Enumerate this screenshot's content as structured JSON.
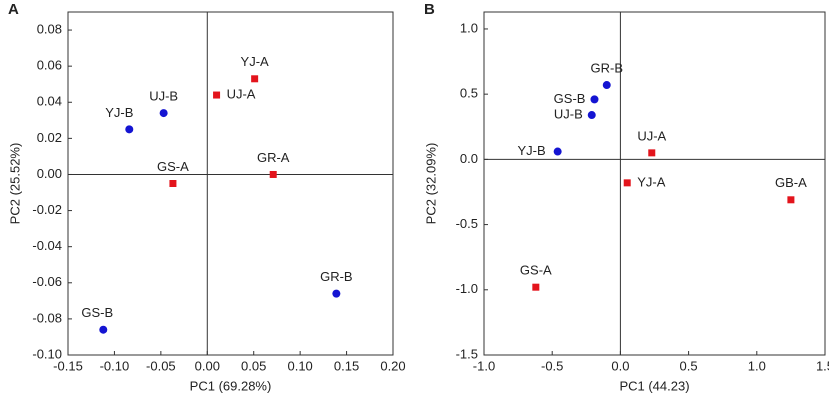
{
  "chart_data": [
    {
      "type": "scatter",
      "title": "A",
      "xlabel": "PC1 (69.28%)",
      "ylabel": "PC2 (25.52%)",
      "xlim": [
        -0.15,
        0.2
      ],
      "ylim": [
        -0.1,
        0.09
      ],
      "xticks": [
        -0.15,
        {
          "value": -0.1,
          "label": "-0.10"
        },
        -0.05,
        {
          "value": 0,
          "label": "0.00"
        },
        0.05,
        {
          "value": 0.1,
          "label": "0.10"
        },
        0.15,
        {
          "value": 0.2,
          "label": "0.20"
        }
      ],
      "yticks": [
        0.08,
        0.06,
        0.04,
        0.02,
        {
          "value": 0,
          "label": "0.00"
        },
        -0.02,
        -0.04,
        -0.06,
        -0.08,
        {
          "value": -0.1,
          "label": "-0.10"
        }
      ],
      "series": [
        {
          "color": "#e3141c",
          "marker": "square",
          "labels": [
            "YJ-A",
            "UJ-A",
            "GS-A",
            "GR-A"
          ],
          "x": [
            0.051,
            0.01,
            -0.037,
            0.071
          ],
          "y": [
            0.053,
            0.044,
            -0.005,
            0.0
          ]
        },
        {
          "color": "#1414d2",
          "marker": "circle",
          "labels": [
            "UJ-B",
            "YJ-B",
            "GR-B",
            "GS-B"
          ],
          "x": [
            -0.047,
            -0.084,
            0.139,
            -0.112
          ],
          "y": [
            0.034,
            0.025,
            -0.066,
            -0.086
          ]
        }
      ]
    },
    {
      "type": "scatter",
      "title": "B",
      "xlabel": "PC1 (44.23)",
      "ylabel": "PC2 (32.09%)",
      "xlim": [
        -1.0,
        1.5
      ],
      "ylim": [
        -1.5,
        1.13
      ],
      "xticks": [
        {
          "value": -1.0,
          "label": "-1.0"
        },
        -0.5,
        {
          "value": 0,
          "label": "0.0"
        },
        0.5,
        {
          "value": 1.0,
          "label": "1.0"
        },
        1.5
      ],
      "yticks": [
        {
          "value": 1.0,
          "label": "1.0"
        },
        0.5,
        {
          "value": 0,
          "label": "0.0"
        },
        -0.5,
        {
          "value": -1.0,
          "label": "-1.0"
        },
        -1.5
      ],
      "series": [
        {
          "color": "#e3141c",
          "marker": "square",
          "labels": [
            "UJ-A",
            "YJ-A",
            "GB-A",
            "GS-A"
          ],
          "x": [
            0.23,
            0.05,
            1.25,
            -0.62
          ],
          "y": [
            0.05,
            -0.18,
            -0.31,
            -0.98
          ]
        },
        {
          "color": "#1414d2",
          "marker": "circle",
          "labels": [
            "GR-B",
            "GS-B",
            "UJ-B",
            "YJ-B"
          ],
          "x": [
            -0.1,
            -0.19,
            -0.21,
            -0.46
          ],
          "y": [
            0.57,
            0.46,
            0.34,
            0.06
          ]
        }
      ]
    }
  ]
}
